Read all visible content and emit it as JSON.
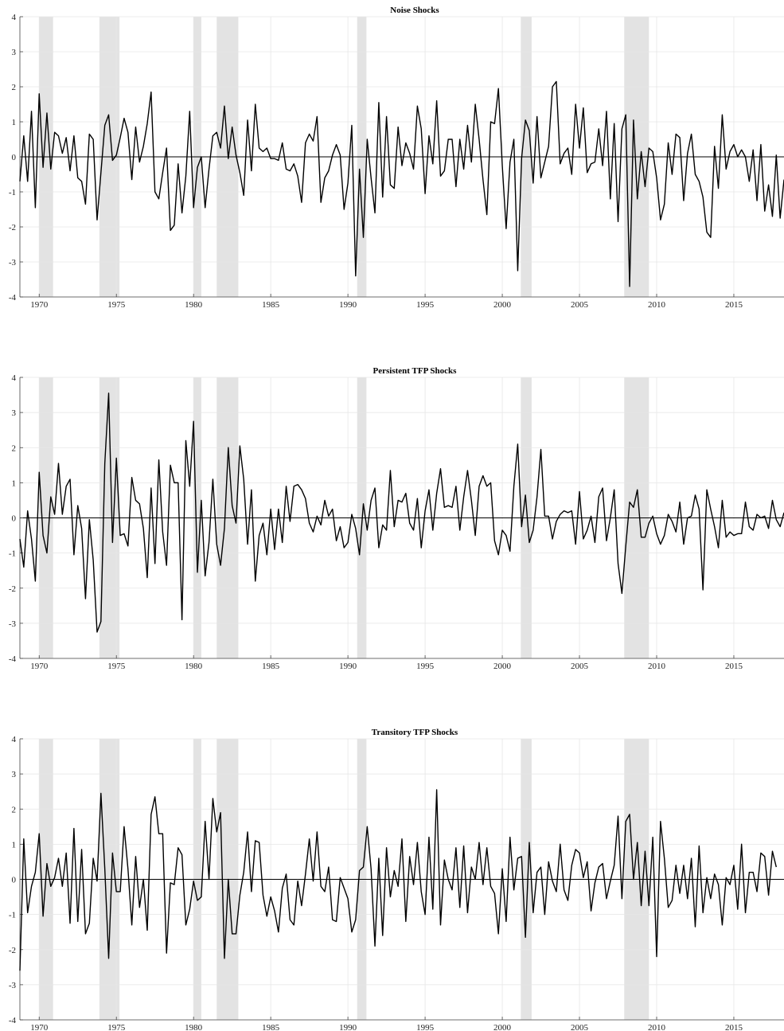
{
  "chart_data": [
    {
      "type": "line",
      "title": "Noise Shocks",
      "xlim": [
        1968.75,
        2018.25
      ],
      "ylim": [
        -4,
        4
      ],
      "xticks": [
        "1970",
        "1975",
        "1980",
        "1985",
        "1990",
        "1995",
        "2000",
        "2005",
        "2010",
        "2015"
      ],
      "yticks": [
        "-4",
        "-3",
        "-2",
        "-1",
        "0",
        "1",
        "2",
        "3",
        "4"
      ],
      "grid": true,
      "zero_line": true,
      "recession_shading": [
        [
          1970.0,
          1970.9
        ],
        [
          1973.9,
          1975.2
        ],
        [
          1980.0,
          1980.5
        ],
        [
          1981.5,
          1982.9
        ],
        [
          1990.6,
          1991.2
        ],
        [
          2001.2,
          2001.9
        ],
        [
          2007.9,
          2009.5
        ]
      ],
      "start": 1968.75,
      "step": 0.25,
      "values": [
        -0.7,
        0.6,
        -0.7,
        1.3,
        -1.45,
        1.8,
        -0.3,
        1.25,
        -0.35,
        0.7,
        0.6,
        0.1,
        0.55,
        -0.4,
        0.6,
        -0.6,
        -0.7,
        -1.35,
        0.65,
        0.5,
        -1.8,
        -0.45,
        0.9,
        1.2,
        -0.1,
        0.05,
        0.55,
        1.1,
        0.7,
        -0.65,
        0.85,
        -0.15,
        0.3,
        0.95,
        1.85,
        -1.0,
        -1.2,
        -0.45,
        0.25,
        -2.1,
        -1.95,
        -0.2,
        -1.6,
        -0.55,
        1.3,
        -1.45,
        -0.3,
        0.0,
        -1.45,
        -0.35,
        0.6,
        0.7,
        0.25,
        1.45,
        -0.05,
        0.85,
        0.05,
        -0.45,
        -1.1,
        1.05,
        -0.4,
        1.5,
        0.25,
        0.15,
        0.25,
        -0.05,
        -0.05,
        -0.1,
        0.4,
        -0.35,
        -0.4,
        -0.2,
        -0.55,
        -1.3,
        0.4,
        0.65,
        0.45,
        1.15,
        -1.3,
        -0.6,
        -0.4,
        0.05,
        0.35,
        0.05,
        -1.5,
        -0.75,
        0.9,
        -3.4,
        -0.35,
        -2.3,
        0.5,
        -0.6,
        -1.6,
        1.55,
        -1.15,
        1.15,
        -0.8,
        -0.9,
        0.85,
        -0.25,
        0.4,
        0.1,
        -0.35,
        1.45,
        0.8,
        -1.05,
        0.6,
        -0.2,
        1.6,
        -0.55,
        -0.4,
        0.5,
        0.5,
        -0.85,
        0.5,
        -0.35,
        0.9,
        -0.15,
        1.5,
        0.5,
        -0.65,
        -1.65,
        1.0,
        0.95,
        1.95,
        -0.25,
        -2.05,
        -0.15,
        0.5,
        -3.25,
        -0.05,
        1.05,
        0.75,
        -0.75,
        1.15,
        -0.6,
        -0.15,
        0.3,
        2.0,
        2.15,
        -0.2,
        0.1,
        0.25,
        -0.5,
        1.5,
        0.25,
        1.4,
        -0.45,
        -0.2,
        -0.15,
        0.8,
        -0.25,
        1.3,
        -1.2,
        0.95,
        -1.85,
        0.8,
        1.2,
        -3.7,
        1.05,
        -1.2,
        0.15,
        -0.85,
        0.25,
        0.15,
        -0.6,
        -1.8,
        -1.35,
        0.4,
        -0.5,
        0.65,
        0.55,
        -1.25,
        0.1,
        0.65,
        -0.5,
        -0.7,
        -1.15,
        -2.15,
        -2.3,
        0.3,
        -0.9,
        1.2,
        -0.35,
        0.15,
        0.35,
        0.0,
        0.2,
        0.0,
        -0.7,
        0.2,
        -1.25,
        0.35,
        -1.55,
        -0.8,
        -1.7,
        0.05,
        -1.75,
        -0.65
      ]
    },
    {
      "type": "line",
      "title": "Persistent TFP Shocks",
      "xlim": [
        1968.75,
        2018.25
      ],
      "ylim": [
        -4,
        4
      ],
      "xticks": [
        "1970",
        "1975",
        "1980",
        "1985",
        "1990",
        "1995",
        "2000",
        "2005",
        "2010",
        "2015"
      ],
      "yticks": [
        "-4",
        "-3",
        "-2",
        "-1",
        "0",
        "1",
        "2",
        "3",
        "4"
      ],
      "grid": true,
      "zero_line": true,
      "recession_shading": [
        [
          1970.0,
          1970.9
        ],
        [
          1973.9,
          1975.2
        ],
        [
          1980.0,
          1980.5
        ],
        [
          1981.5,
          1982.9
        ],
        [
          1990.6,
          1991.2
        ],
        [
          2001.2,
          2001.9
        ],
        [
          2007.9,
          2009.5
        ]
      ],
      "start": 1968.75,
      "step": 0.25,
      "values": [
        -0.6,
        -1.4,
        0.2,
        -0.6,
        -1.8,
        1.3,
        -0.5,
        -1.0,
        0.6,
        0.1,
        1.55,
        0.1,
        0.9,
        1.1,
        -1.05,
        0.35,
        -0.3,
        -2.3,
        -0.05,
        -1.2,
        -3.25,
        -2.95,
        1.55,
        3.55,
        -0.7,
        1.7,
        -0.5,
        -0.45,
        -0.8,
        1.15,
        0.5,
        0.4,
        -0.3,
        -1.7,
        0.85,
        -1.3,
        1.65,
        -0.4,
        -1.35,
        1.5,
        1.0,
        1.0,
        -2.9,
        2.2,
        0.9,
        2.75,
        -1.55,
        0.5,
        -1.65,
        -0.7,
        1.1,
        -0.75,
        -1.35,
        -0.3,
        2.0,
        0.35,
        -0.15,
        2.05,
        1.1,
        -0.75,
        0.8,
        -1.8,
        -0.5,
        -0.15,
        -1.05,
        0.25,
        -0.9,
        0.25,
        -0.7,
        0.9,
        -0.1,
        0.9,
        0.95,
        0.8,
        0.55,
        -0.15,
        -0.4,
        0.05,
        -0.2,
        0.5,
        0.05,
        0.25,
        -0.65,
        -0.25,
        -0.85,
        -0.7,
        0.1,
        -0.3,
        -1.05,
        0.4,
        -0.35,
        0.5,
        0.85,
        -0.85,
        -0.2,
        -0.35,
        1.35,
        -0.25,
        0.5,
        0.45,
        0.7,
        -0.15,
        -0.35,
        0.55,
        -0.85,
        0.2,
        0.8,
        -0.35,
        0.7,
        1.4,
        0.3,
        0.35,
        0.3,
        0.9,
        -0.35,
        0.6,
        1.35,
        0.5,
        -0.5,
        0.9,
        1.2,
        0.9,
        1.0,
        -0.65,
        -1.05,
        -0.35,
        -0.5,
        -0.95,
        0.9,
        2.1,
        -0.25,
        0.65,
        -0.7,
        -0.35,
        0.6,
        1.95,
        0.05,
        0.05,
        -0.6,
        -0.1,
        0.1,
        0.2,
        0.15,
        0.2,
        -0.75,
        0.75,
        -0.6,
        -0.35,
        0.05,
        -0.7,
        0.6,
        0.85,
        -0.65,
        0.0,
        0.8,
        -1.3,
        -2.15,
        -0.8,
        0.45,
        0.3,
        0.8,
        -0.55,
        -0.55,
        -0.15,
        0.05,
        -0.45,
        -0.75,
        -0.5,
        0.1,
        -0.1,
        -0.4,
        0.45,
        -0.75,
        0.0,
        0.05,
        0.65,
        0.25,
        -2.05,
        0.8,
        0.25,
        -0.25,
        -0.85,
        0.5,
        -0.55,
        -0.4,
        -0.5,
        -0.45,
        -0.45,
        0.45,
        -0.25,
        -0.35,
        0.1,
        0.0,
        0.05,
        -0.3,
        0.5,
        -0.05,
        -0.25,
        0.15
      ]
    },
    {
      "type": "line",
      "title": "Transitory TFP Shocks",
      "xlim": [
        1968.75,
        2018.25
      ],
      "ylim": [
        -4,
        4
      ],
      "xticks": [
        "1970",
        "1975",
        "1980",
        "1985",
        "1990",
        "1995",
        "2000",
        "2005",
        "2010",
        "2015"
      ],
      "yticks": [
        "-4",
        "-3",
        "-2",
        "-1",
        "0",
        "1",
        "2",
        "3",
        "4"
      ],
      "grid": true,
      "zero_line": true,
      "recession_shading": [
        [
          1970.0,
          1970.9
        ],
        [
          1973.9,
          1975.2
        ],
        [
          1980.0,
          1980.5
        ],
        [
          1981.5,
          1982.9
        ],
        [
          1990.6,
          1991.2
        ],
        [
          2001.2,
          2001.9
        ],
        [
          2007.9,
          2009.5
        ]
      ],
      "start": 1968.75,
      "step": 0.25,
      "values": [
        -2.6,
        1.15,
        -0.95,
        -0.2,
        0.2,
        1.3,
        -1.05,
        0.45,
        -0.2,
        0.05,
        0.6,
        -0.2,
        0.75,
        -1.25,
        1.45,
        -1.2,
        0.85,
        -1.55,
        -1.25,
        0.6,
        -0.05,
        2.45,
        0.3,
        -2.25,
        0.75,
        -0.35,
        -0.35,
        1.5,
        0.3,
        -1.3,
        0.65,
        -0.8,
        0.0,
        -1.45,
        1.85,
        2.35,
        1.3,
        1.3,
        -2.1,
        -0.1,
        -0.15,
        0.9,
        0.7,
        -1.3,
        -0.85,
        -0.05,
        -0.6,
        -0.5,
        1.65,
        0.0,
        2.3,
        1.35,
        1.9,
        -2.25,
        0.0,
        -1.55,
        -1.55,
        -0.45,
        0.2,
        1.35,
        -0.35,
        1.1,
        1.05,
        -0.45,
        -1.05,
        -0.5,
        -0.9,
        -1.5,
        -0.25,
        0.15,
        -1.15,
        -1.3,
        -0.05,
        -0.75,
        0.15,
        1.15,
        -0.05,
        1.35,
        -0.2,
        -0.35,
        0.35,
        -1.15,
        -1.2,
        0.05,
        -0.25,
        -0.55,
        -1.5,
        -1.15,
        0.25,
        0.35,
        1.5,
        0.3,
        -1.9,
        0.6,
        -1.6,
        0.9,
        -0.5,
        0.25,
        -0.2,
        1.15,
        -1.2,
        0.65,
        -0.15,
        1.05,
        -0.35,
        -1.0,
        1.2,
        -0.85,
        2.55,
        -1.3,
        0.55,
        0.0,
        -0.3,
        0.9,
        -0.8,
        0.95,
        -0.95,
        0.35,
        0.0,
        1.05,
        -0.15,
        0.9,
        -0.2,
        -0.4,
        -1.55,
        0.3,
        -1.2,
        1.2,
        -0.3,
        0.6,
        0.65,
        -1.65,
        1.05,
        -0.95,
        0.2,
        0.35,
        -1.0,
        0.5,
        -0.05,
        -0.35,
        1.0,
        -0.3,
        -0.6,
        0.4,
        0.85,
        0.75,
        0.05,
        0.5,
        -0.9,
        -0.1,
        0.35,
        0.45,
        -0.55,
        -0.05,
        0.4,
        1.8,
        -0.55,
        1.65,
        1.85,
        0.0,
        1.05,
        -0.75,
        0.8,
        -0.75,
        1.2,
        -2.2,
        1.65,
        0.6,
        -0.8,
        -0.6,
        0.4,
        -0.4,
        0.4,
        -0.55,
        0.6,
        -1.35,
        0.95,
        -0.95,
        0.05,
        -0.55,
        0.15,
        -0.15,
        -1.3,
        0.05,
        -0.15,
        0.4,
        -0.85,
        1.0,
        -0.95,
        0.2,
        0.2,
        -0.35,
        0.75,
        0.65,
        -0.45,
        0.8,
        0.35
      ]
    }
  ]
}
